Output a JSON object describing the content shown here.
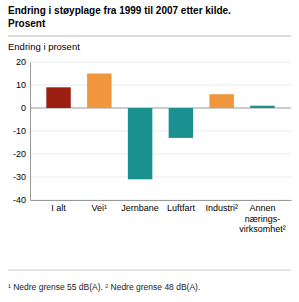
{
  "chart_data": {
    "type": "bar",
    "title": "Endring i støyplage fra 1999 til 2007 etter kilde.\nProsent",
    "ylabel": "Endring i prosent",
    "categories": [
      "I alt",
      "Vei¹",
      "Jernbane",
      "Luftfart",
      "Industri²",
      "Annen\nnærings-\nvirksomhet²"
    ],
    "values": [
      9,
      15,
      -31,
      -13,
      6,
      1
    ],
    "colors": [
      "#9b2012",
      "#f0963c",
      "#1a9090",
      "#1a9090",
      "#f0963c",
      "#1a9090"
    ],
    "ylim": [
      -40,
      20
    ],
    "yticks": [
      -40,
      -30,
      -20,
      -10,
      0,
      10,
      20
    ],
    "grid": true,
    "footnote": "¹ Nedre grense 55 dB(A).  ² Nedre grense 48 dB(A)."
  }
}
